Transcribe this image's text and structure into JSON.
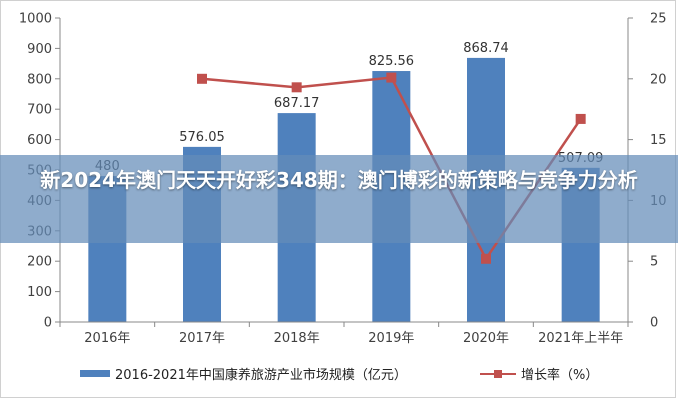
{
  "banner": {
    "title": "新2024年澳门天天开好彩348期：澳门博彩的新策略与竞争力分析"
  },
  "legend": {
    "bar_label": "2016-2021年中国康养旅游产业市场规模（亿元）",
    "line_label": "增长率（%）"
  },
  "colors": {
    "bar": "#4f81bd",
    "line": "#c0504d",
    "gridline": "#d9d9d9",
    "axis_text": "#404040"
  },
  "chart_data": {
    "type": "bar",
    "categories": [
      "2016年",
      "2017年",
      "2018年",
      "2019年",
      "2020年",
      "2021年上半年"
    ],
    "series": [
      {
        "name": "2016-2021年中国康养旅游产业市场规模（亿元）",
        "type": "bar",
        "axis": "left",
        "values": [
          480,
          576.05,
          687.17,
          825.56,
          868.74,
          507.09
        ],
        "labels": [
          "480",
          "576.05",
          "687.17",
          "825.56",
          "868.74",
          "507.09"
        ]
      },
      {
        "name": "增长率（%）",
        "type": "line",
        "axis": "right",
        "values": [
          null,
          20.0,
          19.3,
          20.1,
          5.2,
          16.7
        ]
      }
    ],
    "y_left": {
      "min": 0,
      "max": 1000,
      "step": 100,
      "ticks": [
        "0",
        "100",
        "200",
        "300",
        "400",
        "500",
        "600",
        "700",
        "800",
        "900",
        "1000"
      ]
    },
    "y_right": {
      "min": 0,
      "max": 25,
      "step": 5,
      "ticks": [
        "0",
        "5",
        "10",
        "15",
        "20",
        "25"
      ]
    },
    "grid": false,
    "legend_position": "bottom"
  }
}
